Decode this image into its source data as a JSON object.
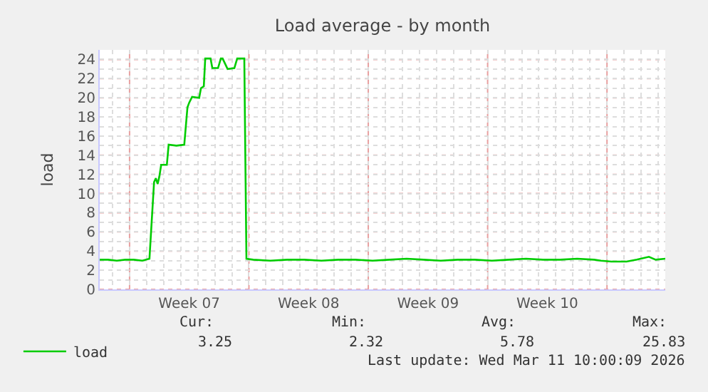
{
  "chart_data": {
    "type": "line",
    "title": "Load average - by month",
    "ylabel": "load",
    "x": [
      "2026-02-06T06:00",
      "2026-02-06T18:00",
      "2026-02-07T06:00",
      "2026-02-07T18:00",
      "2026-02-08T06:00",
      "2026-02-08T18:00",
      "2026-02-09T04:00",
      "2026-02-09T10:30",
      "2026-02-09T13:00",
      "2026-02-09T15:30",
      "2026-02-09T18:00",
      "2026-02-09T20:30",
      "2026-02-10T04:30",
      "2026-02-10T07:00",
      "2026-02-10T18:00",
      "2026-02-11T05:00",
      "2026-02-11T09:30",
      "2026-02-11T12:00",
      "2026-02-11T16:00",
      "2026-02-12T02:00",
      "2026-02-12T04:30",
      "2026-02-12T08:30",
      "2026-02-12T10:30",
      "2026-02-12T18:00",
      "2026-02-12T20:30",
      "2026-02-13T04:30",
      "2026-02-13T08:30",
      "2026-02-13T11:00",
      "2026-02-13T18:00",
      "2026-02-14T03:30",
      "2026-02-14T07:30",
      "2026-02-14T17:30",
      "2026-02-14T20:30",
      "2026-02-15T06:00",
      "2026-02-16T06:00",
      "2026-02-17T06:00",
      "2026-02-18T06:00",
      "2026-02-19T06:00",
      "2026-02-20T06:00",
      "2026-02-21T06:00",
      "2026-02-22T06:00",
      "2026-02-23T06:00",
      "2026-02-24T06:00",
      "2026-02-25T06:00",
      "2026-02-26T06:00",
      "2026-02-27T06:00",
      "2026-02-28T06:00",
      "2026-03-01T06:00",
      "2026-03-02T06:00",
      "2026-03-03T06:00",
      "2026-03-04T06:00",
      "2026-03-05T06:00",
      "2026-03-06T06:00",
      "2026-03-07T06:00",
      "2026-03-07T15:30",
      "2026-03-08T06:00",
      "2026-03-09T03:30",
      "2026-03-09T18:00",
      "2026-03-10T11:00",
      "2026-03-10T20:30",
      "2026-03-11T10:00"
    ],
    "series": [
      {
        "name": "load",
        "color": "#00cc00",
        "values": [
          3.1,
          3.1,
          3.0,
          3.1,
          3.1,
          3.0,
          3.2,
          11.2,
          11.6,
          11.0,
          11.8,
          13.0,
          13.0,
          15.1,
          15.0,
          15.1,
          19.0,
          19.5,
          20.1,
          20.0,
          21.0,
          21.2,
          24.1,
          24.1,
          23.1,
          23.1,
          24.1,
          24.1,
          23.0,
          23.1,
          24.1,
          24.1,
          3.2,
          3.1,
          3.0,
          3.1,
          3.1,
          3.0,
          3.1,
          3.1,
          3.0,
          3.1,
          3.2,
          3.1,
          3.0,
          3.1,
          3.1,
          3.0,
          3.1,
          3.2,
          3.1,
          3.1,
          3.2,
          3.1,
          3.0,
          2.9,
          2.9,
          3.1,
          3.4,
          3.1,
          3.2
        ]
      }
    ],
    "xlim": [
      "2026-02-06T06:00",
      "2026-03-11T10:00"
    ],
    "ylim": [
      0,
      25
    ],
    "xticks": [
      {
        "value": "2026-02-08",
        "label": null
      },
      {
        "value": "2026-02-11T12:00",
        "label": "Week 07"
      },
      {
        "value": "2026-02-15",
        "label": null
      },
      {
        "value": "2026-02-18T12:00",
        "label": "Week 08"
      },
      {
        "value": "2026-02-22",
        "label": null
      },
      {
        "value": "2026-02-25T12:00",
        "label": "Week 09"
      },
      {
        "value": "2026-03-01",
        "label": null
      },
      {
        "value": "2026-03-04T12:00",
        "label": "Week 10"
      },
      {
        "value": "2026-03-08",
        "label": null
      }
    ],
    "yticks": [
      0,
      2,
      4,
      6,
      8,
      10,
      12,
      14,
      16,
      18,
      20,
      22,
      24
    ],
    "grid": true,
    "legend": "bottom left",
    "marker": "none",
    "line_style": "solid",
    "annotations": [
      "Cur:",
      "3.25",
      "Min:",
      "2.32",
      "Avg:",
      "5.78",
      "Max:",
      "25.83",
      "Last update: Wed Mar 11 10:00:09 2026"
    ]
  }
}
